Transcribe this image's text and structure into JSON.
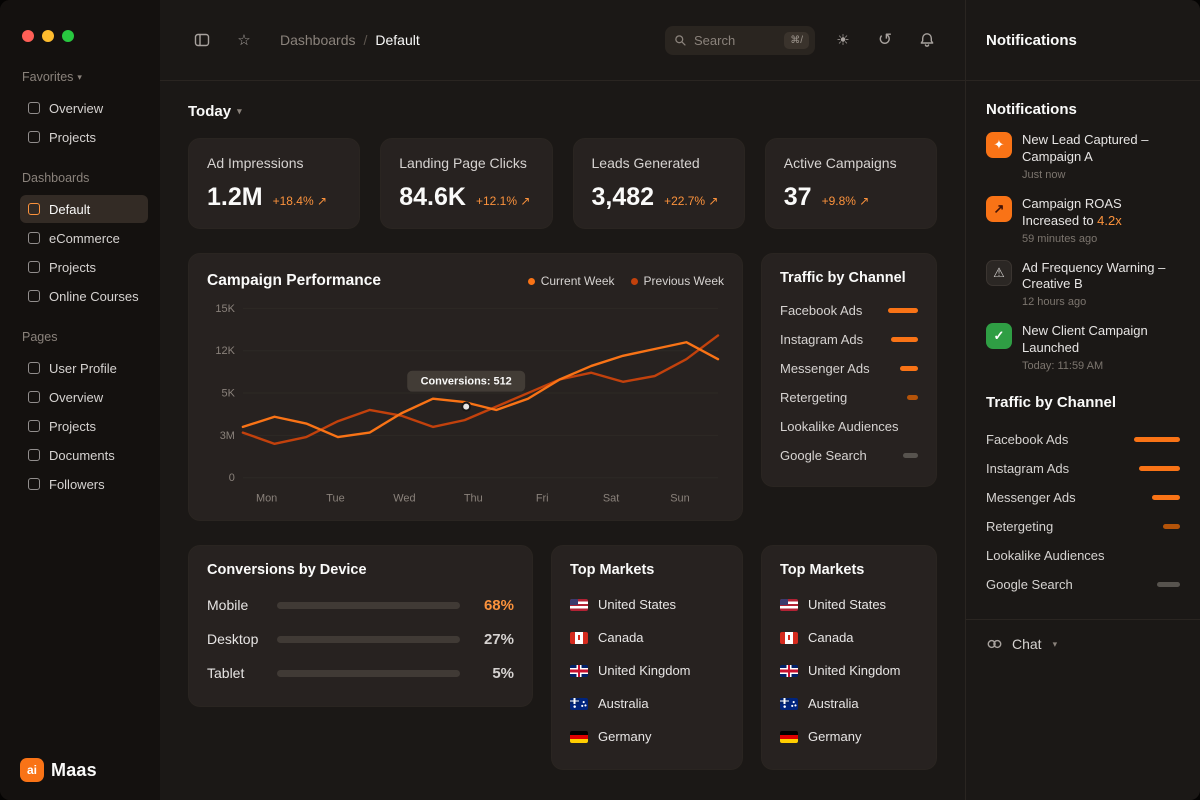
{
  "icons": {
    "chevron": "▾",
    "trend_up": "↗",
    "warning": "⚠",
    "check": "✓",
    "spark": "✦",
    "theme": "☀",
    "history": "↺",
    "star": "☆"
  },
  "logo": {
    "mark": "ai",
    "name": "Maas"
  },
  "sidebar": {
    "sections": [
      {
        "label": "Favorites",
        "collapsible": true,
        "items": [
          {
            "label": "Overview",
            "icon": "grid-icon"
          },
          {
            "label": "Projects",
            "icon": "clipboard-icon"
          }
        ]
      },
      {
        "label": "Dashboards",
        "collapsible": false,
        "items": [
          {
            "label": "Default",
            "icon": "chart-icon",
            "active": true
          },
          {
            "label": "eCommerce",
            "icon": "cart-icon"
          },
          {
            "label": "Projects",
            "icon": "clipboard-icon"
          },
          {
            "label": "Online Courses",
            "icon": "book-icon"
          }
        ]
      },
      {
        "label": "Pages",
        "collapsible": false,
        "items": [
          {
            "label": "User Profile",
            "icon": "user-icon"
          },
          {
            "label": "Overview",
            "icon": "grid-icon"
          },
          {
            "label": "Projects",
            "icon": "clipboard-icon"
          },
          {
            "label": "Documents",
            "icon": "file-icon"
          },
          {
            "label": "Followers",
            "icon": "users-icon"
          }
        ]
      }
    ]
  },
  "topbar": {
    "breadcrumb": {
      "section": "Dashboards",
      "separator": "/",
      "current": "Default"
    },
    "search": {
      "placeholder": "Search",
      "shortcut": "⌘/"
    }
  },
  "main": {
    "period": {
      "label": "Today"
    },
    "kpis": [
      {
        "label": "Ad Impressions",
        "value": "1.2M",
        "delta": "+18.4% ↗"
      },
      {
        "label": "Landing Page Clicks",
        "value": "84.6K",
        "delta": "+12.1% ↗"
      },
      {
        "label": "Leads Generated",
        "value": "3,482",
        "delta": "+22.7% ↗"
      },
      {
        "label": "Active Campaigns",
        "value": "37",
        "delta": "+9.8% ↗"
      }
    ],
    "traffic_card_title": "Traffic by Channel",
    "devices": {
      "title": "Conversions by Device",
      "rows": [
        {
          "label": "Mobile",
          "pct": "68%",
          "value": 68,
          "tone": "orange"
        },
        {
          "label": "Desktop",
          "pct": "27%",
          "value": 27,
          "tone": "gray"
        },
        {
          "label": "Tablet",
          "pct": "5%",
          "value": 5,
          "tone": "gray"
        }
      ]
    },
    "markets": {
      "title": "Top Markets",
      "items": [
        {
          "name": "United States",
          "code": "us"
        },
        {
          "name": "Canada",
          "code": "ca"
        },
        {
          "name": "United Kingdom",
          "code": "gb"
        },
        {
          "name": "Australia",
          "code": "au"
        },
        {
          "name": "Germany",
          "code": "de"
        }
      ]
    }
  },
  "channels": [
    {
      "label": "Facebook Ads",
      "value": 100,
      "tone": "orange"
    },
    {
      "label": "Instagram Ads",
      "value": 90,
      "tone": "orange"
    },
    {
      "label": "Messenger Ads",
      "value": 60,
      "tone": "orange"
    },
    {
      "label": "Retergeting",
      "value": 36,
      "tone": "dim"
    },
    {
      "label": "Lookalike Audiences",
      "value": 0,
      "tone": "none"
    },
    {
      "label": "Google Search",
      "value": 50,
      "tone": "gray"
    }
  ],
  "chart_data": {
    "type": "line",
    "title": "Campaign Performance",
    "x": [
      "Mon",
      "Tue",
      "Wed",
      "Thu",
      "Fri",
      "Sat",
      "Sun"
    ],
    "yticks": [
      "15K",
      "12K",
      "5K",
      "3M",
      "0"
    ],
    "ylim": [
      0,
      15
    ],
    "grid": true,
    "legend_position": "top-right",
    "series": [
      {
        "name": "Current Week",
        "color": "#f97316",
        "values": [
          4.5,
          5.4,
          4.8,
          3.6,
          4.0,
          5.7,
          7.0,
          6.7,
          6.0,
          7.0,
          8.7,
          9.9,
          10.8,
          11.4,
          12.0,
          10.5
        ]
      },
      {
        "name": "Previous Week",
        "color": "#c2410c",
        "values": [
          4.0,
          3.0,
          3.6,
          5.0,
          6.0,
          5.5,
          4.5,
          5.1,
          6.3,
          7.5,
          8.7,
          9.3,
          8.5,
          9.0,
          10.5,
          12.6
        ]
      }
    ],
    "tooltip": {
      "label": "Conversions: 512",
      "day": "Thu",
      "x_frac": 0.47,
      "value": 6.3
    }
  },
  "right_panel": {
    "header": "Notifications",
    "notifications_title": "Notifications",
    "notifications": [
      {
        "type": "lead",
        "title": "New Lead Captured – Campaign A",
        "highlight": "",
        "time": "Just now"
      },
      {
        "type": "roas",
        "title": "Campaign ROAS Increased to ",
        "highlight": "4.2x",
        "time": "59 minutes ago"
      },
      {
        "type": "warn",
        "title": "Ad Frequency Warning – Creative B",
        "highlight": "",
        "time": "12 hours ago"
      },
      {
        "type": "success",
        "title": "New Client Campaign Launched",
        "highlight": "",
        "time": "Today: 11:59 AM"
      }
    ],
    "traffic_title": "Traffic by Channel",
    "chat_label": "Chat"
  }
}
